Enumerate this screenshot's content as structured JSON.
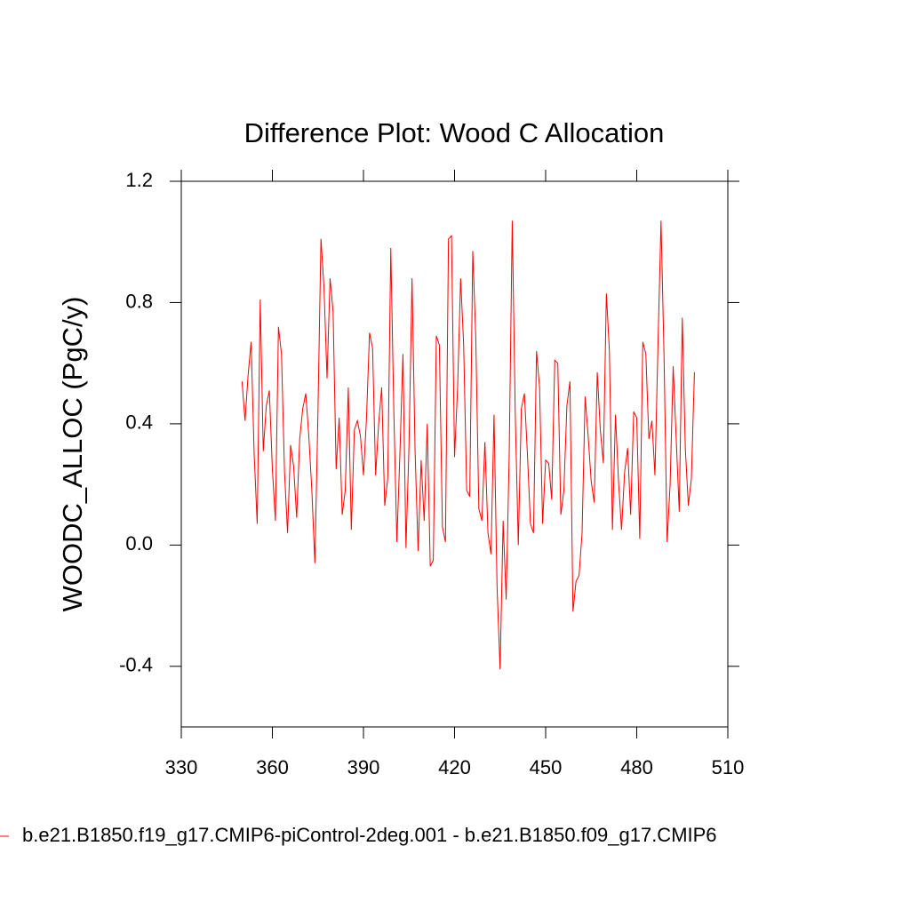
{
  "chart_data": {
    "type": "line",
    "title": "Difference Plot: Wood C Allocation",
    "y_label": "WOODC_ALLOC  (PgC/y)",
    "x": [
      350,
      351,
      352,
      353,
      354,
      355,
      356,
      357,
      358,
      359,
      360,
      361,
      362,
      363,
      364,
      365,
      366,
      367,
      368,
      369,
      370,
      371,
      372,
      373,
      374,
      375,
      376,
      377,
      378,
      379,
      380,
      381,
      382,
      383,
      384,
      385,
      386,
      387,
      388,
      389,
      390,
      391,
      392,
      393,
      394,
      395,
      396,
      397,
      398,
      399,
      400,
      401,
      402,
      403,
      404,
      405,
      406,
      407,
      408,
      409,
      410,
      411,
      412,
      413,
      414,
      415,
      416,
      417,
      418,
      419,
      420,
      421,
      422,
      423,
      424,
      425,
      426,
      427,
      428,
      429,
      430,
      431,
      432,
      433,
      434,
      435,
      436,
      437,
      438,
      439,
      440,
      441,
      442,
      443,
      444,
      445,
      446,
      447,
      448,
      449,
      450,
      451,
      452,
      453,
      454,
      455,
      456,
      457,
      458,
      459,
      460,
      461,
      462,
      463,
      464,
      465,
      466,
      467,
      468,
      469,
      470,
      471,
      472,
      473,
      474,
      475,
      476,
      477,
      478,
      479,
      480,
      481,
      482,
      483,
      484,
      485,
      486,
      487,
      488,
      489,
      490,
      491,
      492,
      493,
      494,
      495,
      496,
      497,
      498,
      499
    ],
    "series": [
      {
        "name": "b.e21.B1850.f19_g17.CMIP6-piControl-2deg.001 - b.e21.B1850.f09_g17.CMIP6",
        "color": "#ff0000",
        "values": [
          0.54,
          0.41,
          0.56,
          0.67,
          0.3,
          0.07,
          0.81,
          0.31,
          0.46,
          0.51,
          0.25,
          0.08,
          0.72,
          0.63,
          0.24,
          0.04,
          0.33,
          0.26,
          0.09,
          0.35,
          0.45,
          0.5,
          0.36,
          0.18,
          -0.06,
          0.43,
          1.01,
          0.85,
          0.55,
          0.88,
          0.77,
          0.25,
          0.42,
          0.1,
          0.18,
          0.52,
          0.05,
          0.38,
          0.41,
          0.36,
          0.23,
          0.42,
          0.7,
          0.65,
          0.23,
          0.4,
          0.52,
          0.13,
          0.22,
          0.98,
          0.44,
          0.01,
          0.3,
          0.63,
          -0.01,
          0.33,
          0.88,
          0.31,
          -0.02,
          0.28,
          0.08,
          0.4,
          -0.07,
          -0.05,
          0.69,
          0.66,
          0.06,
          0.01,
          1.01,
          1.02,
          0.29,
          0.52,
          0.88,
          0.66,
          0.18,
          0.16,
          0.97,
          0.68,
          0.12,
          0.08,
          0.34,
          0.04,
          -0.03,
          0.43,
          -0.14,
          -0.41,
          0.08,
          -0.18,
          0.3,
          1.07,
          0.43,
          0.0,
          0.45,
          0.5,
          0.3,
          0.07,
          0.04,
          0.64,
          0.52,
          0.07,
          0.28,
          0.27,
          0.15,
          0.61,
          0.6,
          0.1,
          0.18,
          0.46,
          0.54,
          -0.22,
          -0.12,
          -0.1,
          0.04,
          0.49,
          0.36,
          0.21,
          0.14,
          0.57,
          0.38,
          0.27,
          0.83,
          0.64,
          0.05,
          0.43,
          0.21,
          0.05,
          0.24,
          0.32,
          0.1,
          0.44,
          0.42,
          0.02,
          0.67,
          0.63,
          0.35,
          0.41,
          0.23,
          0.66,
          1.07,
          0.62,
          0.01,
          0.2,
          0.59,
          0.35,
          0.11,
          0.75,
          0.32,
          0.13,
          0.22,
          0.57
        ]
      }
    ],
    "xlim": [
      330,
      510
    ],
    "xticks": [
      330,
      360,
      390,
      420,
      450,
      480,
      510
    ],
    "ylim": [
      -0.6,
      1.2
    ],
    "yticks": [
      {
        "value": -0.4,
        "label": "-0.4"
      },
      {
        "value": 0,
        "label": "0.0"
      },
      {
        "value": 0.4,
        "label": "0.4"
      },
      {
        "value": 0.8,
        "label": "0.8"
      },
      {
        "value": 1.2,
        "label": "1.2"
      }
    ]
  }
}
